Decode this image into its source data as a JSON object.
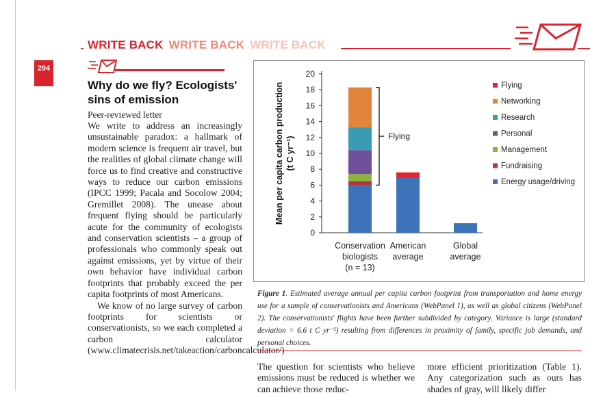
{
  "header": {
    "label_1": "WRITE BACK",
    "label_2": "WRITE BACK",
    "label_3": "WRITE BACK",
    "accent_color": "#d9232d"
  },
  "page_number": "294",
  "article": {
    "title": "Why do we fly? Ecologists' sins of emission",
    "subhead": "Peer-reviewed letter",
    "paragraph_1": "We write to address an increasingly unsustainable paradox: a hallmark of modern science is frequent air travel, but the realities of global climate change will force us to find creative and constructive ways to reduce our carbon emissions (IPCC 1999; Pacala and Socolow 2004; Gremillet 2008). The unease about frequent flying should be particularly acute for the community of ecologists and conservation scientists – a group of professionals who commonly speak out against emissions, yet by virtue of their own behavior have individual carbon footprints that probably exceed the per capita footprints of most Americans.",
    "paragraph_2": "We know of no large survey of carbon footprints for scientists or conservationists, so we each completed a carbon calculator (www.climatecrisis.net/takeaction/carboncalculator/)"
  },
  "figure": {
    "caption_label": "Figure 1",
    "caption_text": ". Estimated average annual per capita carbon footprint from transportation and home energy use for a sample of conservationists and Americans (WebPanel 1), as well as global citizens (WebPanel 2). The conservationists' flights have been further subdivided by category. Variance is large (standard deviation = 6.6 t C yr⁻¹) resulting from differences in proximity of family, specific job demands, and personal choices."
  },
  "chart_data": {
    "type": "bar",
    "stacked": true,
    "ylabel_line1": "Mean per capita carbon production",
    "ylabel_line2": "(t C yr⁻¹)",
    "ylim": [
      0,
      20
    ],
    "yticks": [
      0,
      2,
      4,
      6,
      8,
      10,
      12,
      14,
      16,
      18,
      20
    ],
    "categories": [
      {
        "line1": "Conservation",
        "line2": "biologists",
        "line3": "(n = 13)"
      },
      {
        "line1": "American",
        "line2": "average",
        "line3": ""
      },
      {
        "line1": "Global",
        "line2": "average",
        "line3": ""
      }
    ],
    "series": [
      {
        "name": "Energy usage/driving",
        "color": "#3d73b8",
        "values": [
          6.0,
          6.9,
          1.2
        ]
      },
      {
        "name": "Fundraising",
        "color": "#b5343a",
        "values": [
          0.5,
          0,
          0
        ]
      },
      {
        "name": "Management",
        "color": "#8cb33f",
        "values": [
          0.9,
          0,
          0
        ]
      },
      {
        "name": "Personal",
        "color": "#6f4e9c",
        "values": [
          3.0,
          0,
          0
        ]
      },
      {
        "name": "Research",
        "color": "#3a9bb5",
        "values": [
          2.9,
          0,
          0
        ]
      },
      {
        "name": "Networking",
        "color": "#e2853a",
        "values": [
          5.0,
          0,
          0
        ]
      },
      {
        "name": "Flying",
        "color": "#e8232d",
        "values": [
          0,
          0.7,
          0
        ]
      }
    ],
    "legend_order": [
      "Flying",
      "Networking",
      "Research",
      "Personal",
      "Management",
      "Fundraising",
      "Energy usage/driving"
    ],
    "legend_position": "right",
    "annotation": "Flying"
  },
  "col2_text": "The question for scientists who believe emissions must be reduced is whether we can achieve those reduc-",
  "col3_text": "more efficient prioritization (Table 1). Any categorization such as ours has shades of gray, will likely differ"
}
